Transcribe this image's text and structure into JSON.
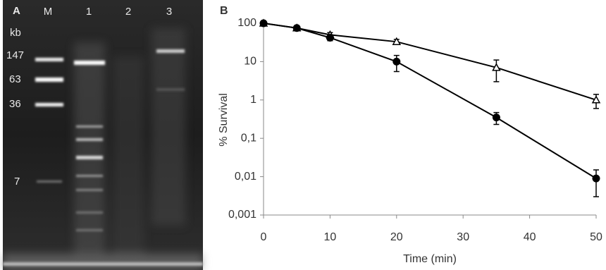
{
  "panel_a": {
    "panel_label": "A",
    "lanes": [
      "M",
      "1",
      "2",
      "3"
    ],
    "unit": "kb",
    "sizes": [
      "147",
      "63",
      "36",
      "7"
    ]
  },
  "chart_data": {
    "type": "line",
    "panel_label": "B",
    "x_label": "Time (min)",
    "y_label": "% Survival",
    "x": [
      0,
      5,
      10,
      20,
      35,
      50
    ],
    "xlim": [
      0,
      50
    ],
    "xticks": [
      0,
      10,
      20,
      30,
      40,
      50
    ],
    "ylim": [
      0.001,
      100
    ],
    "log_y": true,
    "yticks": [
      {
        "value": 0.001,
        "label": "0,001"
      },
      {
        "value": 0.01,
        "label": "0,01"
      },
      {
        "value": 0.1,
        "label": "0,1"
      },
      1,
      10,
      100
    ],
    "grid": false,
    "series": [
      {
        "marker": "triangle",
        "color": "#000000",
        "values": [
          100,
          75,
          50,
          33,
          7,
          1
        ],
        "errors": [
          6,
          5,
          7,
          5,
          4,
          0.4
        ]
      },
      {
        "marker": "circle",
        "color": "#000000",
        "values": [
          100,
          75,
          42,
          10,
          0.35,
          0.009
        ],
        "errors": [
          6,
          5,
          7,
          4.5,
          0.12,
          0.006
        ]
      }
    ]
  }
}
